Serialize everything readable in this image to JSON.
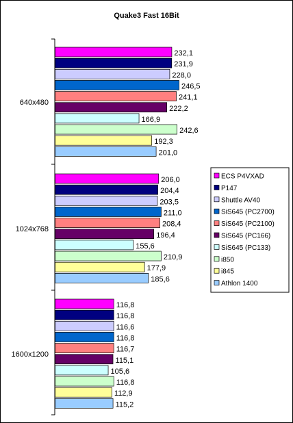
{
  "chart_data": {
    "type": "bar",
    "orientation": "horizontal",
    "title": "Quake3 Fast 16Bit",
    "xlabel": "",
    "ylabel": "",
    "xlim": [
      0,
      300
    ],
    "grid": false,
    "legend_position": "right",
    "categories": [
      "640x480",
      "1024x768",
      "1600x1200"
    ],
    "series": [
      {
        "name": "ECS P4VXAD",
        "color": "#ff00ff",
        "values": [
          232.1,
          206.0,
          116.8
        ],
        "labels": [
          "232,1",
          "206,0",
          "116,8"
        ]
      },
      {
        "name": "P147",
        "color": "#000080",
        "values": [
          231.9,
          204.4,
          116.8
        ],
        "labels": [
          "231,9",
          "204,4",
          "116,8"
        ]
      },
      {
        "name": "Shuttle AV40",
        "color": "#ccccff",
        "values": [
          228.0,
          203.5,
          116.6
        ],
        "labels": [
          "228,0",
          "203,5",
          "116,6"
        ]
      },
      {
        "name": "SiS645 (PC2700)",
        "color": "#0066cc",
        "values": [
          246.5,
          211.0,
          116.8
        ],
        "labels": [
          "246,5",
          "211,0",
          "116,8"
        ]
      },
      {
        "name": "SiS645 (PC2100)",
        "color": "#ff8080",
        "values": [
          241.1,
          208.4,
          116.7
        ],
        "labels": [
          "241,1",
          "208,4",
          "116,7"
        ]
      },
      {
        "name": "SiS645 (PC166)",
        "color": "#660066",
        "values": [
          222.2,
          196.4,
          115.1
        ],
        "labels": [
          "222,2",
          "196,4",
          "115,1"
        ]
      },
      {
        "name": "SiS645 (PC133)",
        "color": "#ccffff",
        "values": [
          166.9,
          155.6,
          105.6
        ],
        "labels": [
          "166,9",
          "155,6",
          "105,6"
        ]
      },
      {
        "name": "i850",
        "color": "#ccffcc",
        "values": [
          242.6,
          210.9,
          116.8
        ],
        "labels": [
          "242,6",
          "210,9",
          "116,8"
        ]
      },
      {
        "name": "i845",
        "color": "#ffff99",
        "values": [
          192.3,
          177.9,
          112.9
        ],
        "labels": [
          "192,3",
          "177,9",
          "112,9"
        ]
      },
      {
        "name": "Athlon 1400",
        "color": "#99ccff",
        "values": [
          201.0,
          185.6,
          115.2
        ],
        "labels": [
          "201,0",
          "185,6",
          "115,2"
        ]
      }
    ]
  }
}
